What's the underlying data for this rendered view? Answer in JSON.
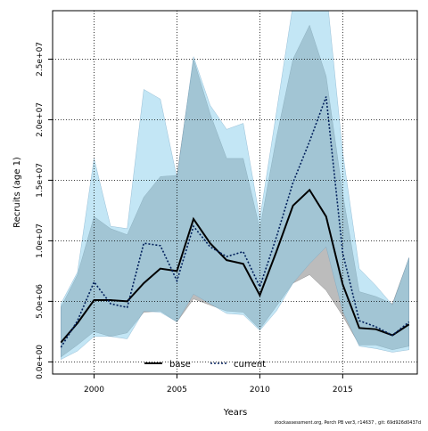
{
  "chart_data": {
    "type": "line",
    "xlabel": "Years",
    "ylabel": "Recruits (age 1)",
    "xlim": [
      1997.5,
      2019.5
    ],
    "ylim": [
      -1000000,
      29000000
    ],
    "xticks": [
      2000,
      2005,
      2010,
      2015
    ],
    "xtick_labels": [
      "2000",
      "2005",
      "2010",
      "2015"
    ],
    "yticks": [
      0,
      5000000,
      10000000,
      15000000,
      20000000,
      25000000
    ],
    "ytick_labels": [
      "0.0e+00",
      "5.0e+06",
      "1.0e+07",
      "1.5e+07",
      "2.0e+07",
      "2.5e+07"
    ],
    "grid": true,
    "legend_position": "bottom-center",
    "x": [
      1998,
      1999,
      2000,
      2001,
      2002,
      2003,
      2004,
      2005,
      2006,
      2007,
      2008,
      2009,
      2010,
      2011,
      2012,
      2013,
      2014,
      2015,
      2016,
      2017,
      2018,
      2019
    ],
    "series": [
      {
        "name": "base",
        "color": "#000000",
        "line_style": "solid",
        "values": [
          1600000,
          3200000,
          5100000,
          5100000,
          5000000,
          6500000,
          7700000,
          7500000,
          11800000,
          9800000,
          8400000,
          8100000,
          5500000,
          9100000,
          12900000,
          14200000,
          12000000,
          6400000,
          2800000,
          2700000,
          2200000,
          3100000
        ],
        "band_lower": [
          400000,
          1400000,
          2500000,
          2100000,
          2400000,
          4100000,
          4200000,
          3300000,
          5200000,
          4700000,
          4200000,
          4100000,
          2700000,
          4600000,
          6500000,
          7200000,
          5900000,
          3800000,
          1400000,
          1400000,
          1000000,
          1300000
        ],
        "band_upper": [
          4500000,
          7200000,
          12000000,
          11000000,
          10500000,
          13600000,
          15300000,
          15400000,
          25000000,
          20500000,
          16800000,
          16800000,
          11000000,
          18500000,
          25000000,
          27800000,
          23600000,
          13900000,
          5800000,
          5400000,
          4800000,
          8600000
        ],
        "band_color": "#8f8f8f"
      },
      {
        "name": "current",
        "color": "#001f5b",
        "line_style": "dotted",
        "values": [
          1200000,
          3400000,
          6600000,
          4800000,
          4500000,
          9800000,
          9600000,
          6700000,
          11200000,
          9500000,
          8700000,
          9100000,
          6200000,
          10300000,
          14800000,
          18200000,
          21900000,
          9000000,
          3400000,
          2900000,
          2200000,
          3300000
        ],
        "band_lower": [
          200000,
          900000,
          2100000,
          2100000,
          1900000,
          4200000,
          4100000,
          3300000,
          5600000,
          4800000,
          4000000,
          3900000,
          2600000,
          4200000,
          6500000,
          8100000,
          9500000,
          4200000,
          1300000,
          1100000,
          800000,
          1000000
        ],
        "band_upper": [
          4800000,
          7400000,
          16800000,
          11200000,
          11000000,
          22500000,
          21700000,
          15200000,
          25200000,
          21200000,
          19200000,
          19700000,
          11800000,
          20600000,
          29500000,
          31600000,
          30900000,
          17300000,
          7700000,
          6300000,
          4700000,
          8600000
        ],
        "band_color": "#87ceeb"
      }
    ]
  },
  "footer": "stockassessment.org, Perch PB ver3, r14637 , git: 69d926d0437d"
}
